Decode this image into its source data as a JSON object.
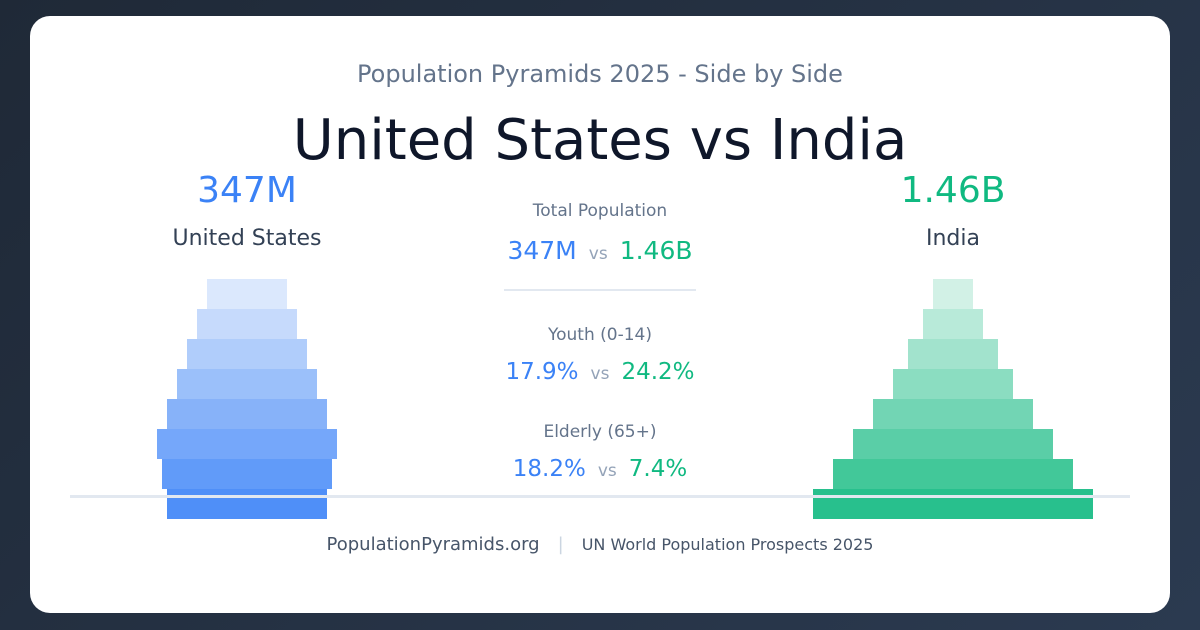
{
  "header": {
    "subtitle": "Population Pyramids 2025 - Side by Side",
    "title": "United States vs India"
  },
  "left": {
    "name": "United States",
    "total": "347M",
    "color": "#3b82f6"
  },
  "right": {
    "name": "India",
    "total": "1.46B",
    "color": "#10b981"
  },
  "stats": {
    "vs_label": "vs",
    "items": [
      {
        "label": "Total Population",
        "left": "347M",
        "right": "1.46B"
      },
      {
        "label": "Youth (0-14)",
        "left": "17.9%",
        "right": "24.2%"
      },
      {
        "label": "Elderly (65+)",
        "left": "18.2%",
        "right": "7.4%"
      }
    ]
  },
  "footer": {
    "site": "PopulationPyramids.org",
    "separator": "|",
    "source": "UN World Population Prospects 2025"
  },
  "chart_data": [
    {
      "type": "bar",
      "orientation": "horizontal-centered",
      "series": [
        {
          "name": "United States",
          "values": [
            80,
            100,
            120,
            140,
            160,
            180,
            170,
            160
          ]
        }
      ],
      "order": "top-to-bottom, oldest to youngest",
      "colors": [
        "#dbe8fd",
        "#c6dafc",
        "#b0cdfb",
        "#9bc0fa",
        "#87b2f9",
        "#75a7fa",
        "#619bf9",
        "#4f8ff8"
      ]
    },
    {
      "type": "bar",
      "orientation": "horizontal-centered",
      "series": [
        {
          "name": "India",
          "values": [
            40,
            60,
            90,
            120,
            160,
            200,
            240,
            280
          ]
        }
      ],
      "order": "top-to-bottom, oldest to youngest",
      "colors": [
        "#d2f1e6",
        "#b8ead9",
        "#a2e3cd",
        "#8bddc1",
        "#72d5b4",
        "#5acea7",
        "#42c899",
        "#28c08d"
      ]
    }
  ]
}
